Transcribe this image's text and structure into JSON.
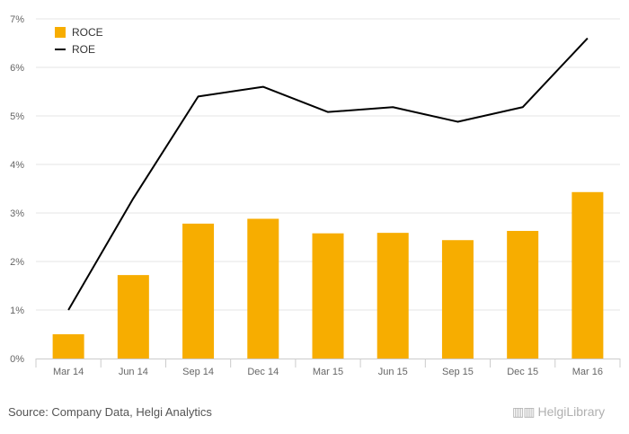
{
  "chart_data": {
    "type": "bar",
    "categories": [
      "Mar 14",
      "Jun 14",
      "Sep 14",
      "Dec 14",
      "Mar 15",
      "Jun 15",
      "Sep 15",
      "Dec 15",
      "Mar 16"
    ],
    "series": [
      {
        "name": "ROCE",
        "type": "bar",
        "color": "#f7ad00",
        "values": [
          0.5,
          1.72,
          2.78,
          2.88,
          2.58,
          2.59,
          2.44,
          2.63,
          3.43
        ]
      },
      {
        "name": "ROE",
        "type": "line",
        "color": "#000000",
        "values": [
          1.0,
          3.3,
          5.4,
          5.6,
          5.08,
          5.18,
          4.88,
          5.18,
          6.6
        ]
      }
    ],
    "ylim": [
      0,
      7
    ],
    "yticks": [
      "0%",
      "1%",
      "2%",
      "3%",
      "4%",
      "5%",
      "6%",
      "7%"
    ],
    "grid": true,
    "legend_position": "top-left",
    "title": "",
    "xlabel": "",
    "ylabel": ""
  },
  "footer": {
    "source": "Source: Company Data, Helgi Analytics",
    "brand": "HelgiLibrary"
  }
}
